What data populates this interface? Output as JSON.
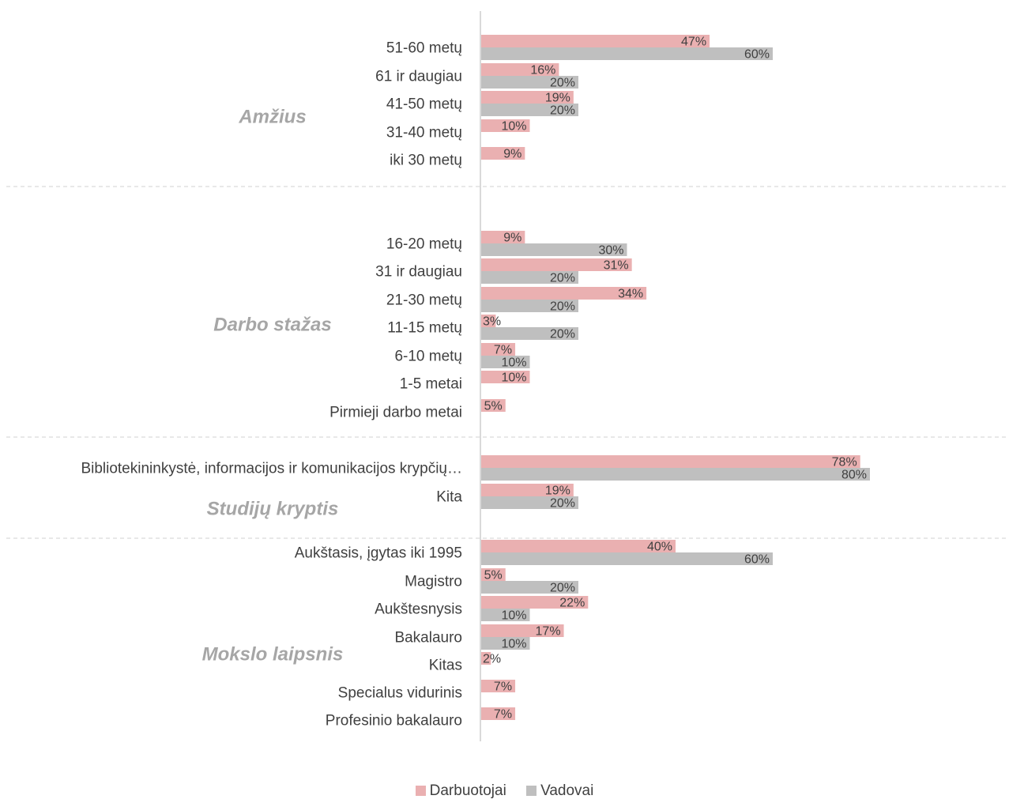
{
  "chart_data": {
    "type": "bar",
    "orientation": "horizontal",
    "series": [
      {
        "name": "Darbuotojai",
        "color": "#eab0b1"
      },
      {
        "name": "Vadovai",
        "color": "#bfbfbf"
      }
    ],
    "groups": [
      {
        "label": "Amžius",
        "rows": [
          {
            "label": "51-60 metų",
            "values": [
              47,
              60
            ],
            "value_labels": [
              "47%",
              "60%"
            ]
          },
          {
            "label": "61 ir daugiau",
            "values": [
              16,
              20
            ],
            "value_labels": [
              "16%",
              "20%"
            ]
          },
          {
            "label": "41-50 metų",
            "values": [
              19,
              20
            ],
            "value_labels": [
              "19%",
              "20%"
            ]
          },
          {
            "label": "31-40 metų",
            "values": [
              10,
              null
            ],
            "value_labels": [
              "10%",
              ""
            ]
          },
          {
            "label": "iki 30 metų",
            "values": [
              9,
              null
            ],
            "value_labels": [
              "9%",
              ""
            ]
          }
        ]
      },
      {
        "label": "Darbo stažas",
        "rows": [
          {
            "label": "16-20 metų",
            "values": [
              9,
              30
            ],
            "value_labels": [
              "9%",
              "30%"
            ]
          },
          {
            "label": "31 ir daugiau",
            "values": [
              31,
              20
            ],
            "value_labels": [
              "31%",
              "20%"
            ]
          },
          {
            "label": "21-30 metų",
            "values": [
              34,
              20
            ],
            "value_labels": [
              "34%",
              "20%"
            ]
          },
          {
            "label": "11-15 metų",
            "values": [
              3,
              20
            ],
            "value_labels": [
              "3%",
              "20%"
            ]
          },
          {
            "label": "6-10 metų",
            "values": [
              7,
              10
            ],
            "value_labels": [
              "7%",
              "10%"
            ]
          },
          {
            "label": "1-5 metai",
            "values": [
              10,
              null
            ],
            "value_labels": [
              "10%",
              ""
            ]
          },
          {
            "label": "Pirmieji darbo metai",
            "values": [
              5,
              null
            ],
            "value_labels": [
              "5%",
              ""
            ]
          }
        ]
      },
      {
        "label": "Studijų kryptis",
        "rows": [
          {
            "label": "Bibliotekininkystė, informacijos ir komunikacijos krypčių…",
            "values": [
              78,
              80
            ],
            "value_labels": [
              "78%",
              "80%"
            ]
          },
          {
            "label": "Kita",
            "values": [
              19,
              20
            ],
            "value_labels": [
              "19%",
              "20%"
            ]
          }
        ]
      },
      {
        "label": "Mokslo laipsnis",
        "rows": [
          {
            "label": "Aukštasis, įgytas iki 1995",
            "values": [
              40,
              60
            ],
            "value_labels": [
              "40%",
              "60%"
            ]
          },
          {
            "label": "Magistro",
            "values": [
              5,
              20
            ],
            "value_labels": [
              "5%",
              "20%"
            ]
          },
          {
            "label": "Aukštesnysis",
            "values": [
              22,
              10
            ],
            "value_labels": [
              "22%",
              "10%"
            ]
          },
          {
            "label": "Bakalauro",
            "values": [
              17,
              10
            ],
            "value_labels": [
              "17%",
              "10%"
            ]
          },
          {
            "label": "Kitas",
            "values": [
              2,
              null
            ],
            "value_labels": [
              "2%",
              ""
            ]
          },
          {
            "label": "Specialus vidurinis",
            "values": [
              7,
              null
            ],
            "value_labels": [
              "7%",
              ""
            ]
          },
          {
            "label": "Profesinio bakalauro",
            "values": [
              7,
              null
            ],
            "value_labels": [
              "7%",
              ""
            ]
          }
        ]
      }
    ],
    "legend": {
      "position": "bottom",
      "entries": [
        "Darbuotojai",
        "Vadovai"
      ]
    },
    "gridlines": false,
    "group_separators": "dashed"
  }
}
